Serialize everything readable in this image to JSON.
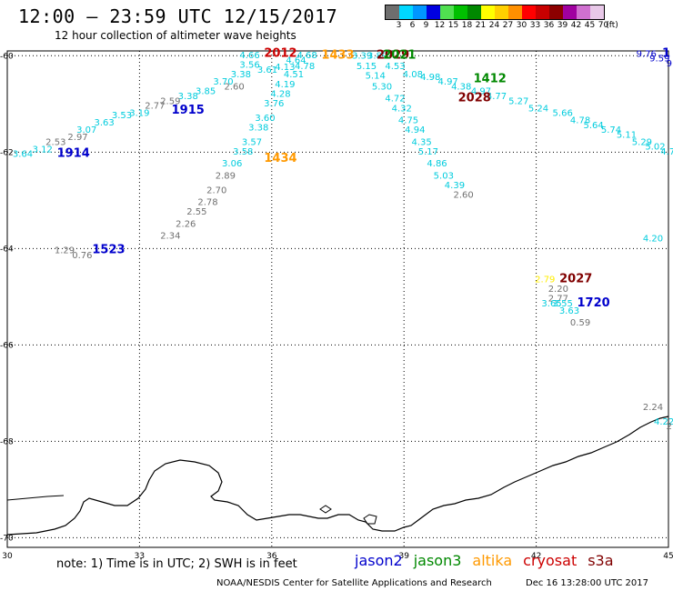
{
  "title": "12:00 – 23:59 UTC 12/15/2017",
  "subtitle": "12 hour collection of altimeter wave heights",
  "legend": {
    "unit": "(ft)",
    "bins": [
      {
        "label": "3",
        "color": "#6e6e6e"
      },
      {
        "label": "6",
        "color": "#00d8ff"
      },
      {
        "label": "9",
        "color": "#0096ff"
      },
      {
        "label": "12",
        "color": "#0000e0"
      },
      {
        "label": "15",
        "color": "#50e050"
      },
      {
        "label": "18",
        "color": "#00c000"
      },
      {
        "label": "21",
        "color": "#008800"
      },
      {
        "label": "24",
        "color": "#ffff00"
      },
      {
        "label": "27",
        "color": "#ffd000"
      },
      {
        "label": "30",
        "color": "#ff9000"
      },
      {
        "label": "33",
        "color": "#ff0000"
      },
      {
        "label": "36",
        "color": "#c80000"
      },
      {
        "label": "39",
        "color": "#8c0000"
      },
      {
        "label": "42",
        "color": "#a000a0"
      },
      {
        "label": "45",
        "color": "#d070d0"
      },
      {
        "label": "70",
        "color": "#e8c8e8"
      }
    ]
  },
  "axes": {
    "lon_ticks": [
      "30",
      "33",
      "36",
      "39",
      "42",
      "45"
    ],
    "lat_ticks": [
      "-60",
      "-62",
      "-64",
      "-66",
      "-68",
      "-70"
    ]
  },
  "colors": {
    "jason2": "#0000cc",
    "jason3": "#008800",
    "altika": "#ff9900",
    "cryosat": "#cc0000",
    "s3a": "#800000",
    "wave_cyan": "#00ccdd",
    "wave_gray": "#707070"
  },
  "pass_times": [
    {
      "text": "2012",
      "color": "#cc0000",
      "lon": 36.2,
      "lat": -60.02
    },
    {
      "text": "1433",
      "color": "#ff9900",
      "lon": 37.5,
      "lat": -60.06
    },
    {
      "text": "2029",
      "color": "#800000",
      "lon": 38.75,
      "lat": -60.06
    },
    {
      "text": "2021",
      "color": "#008800",
      "lon": 38.9,
      "lat": -60.06
    },
    {
      "text": "1412",
      "color": "#008800",
      "lon": 40.95,
      "lat": -60.55
    },
    {
      "text": "2028",
      "color": "#800000",
      "lon": 40.6,
      "lat": -60.95
    },
    {
      "text": "1915",
      "color": "#0000cc",
      "lon": 34.1,
      "lat": -61.2
    },
    {
      "text": "1914",
      "color": "#0000cc",
      "lon": 31.5,
      "lat": -62.1
    },
    {
      "text": "1434",
      "color": "#ff9900",
      "lon": 36.2,
      "lat": -62.2
    },
    {
      "text": "1523",
      "color": "#0000cc",
      "lon": 32.3,
      "lat": -64.1
    },
    {
      "text": "2027",
      "color": "#800000",
      "lon": 42.9,
      "lat": -64.7
    },
    {
      "text": "1720",
      "color": "#0000cc",
      "lon": 43.3,
      "lat": -65.2
    },
    {
      "text": "1",
      "color": "#0000cc",
      "lon": 44.95,
      "lat": -60.02
    }
  ],
  "wave_heights": [
    {
      "text": "4.66",
      "color": "#00ccdd",
      "lon": 35.5,
      "lat": -60.05
    },
    {
      "text": "3.56",
      "color": "#00ccdd",
      "lon": 35.5,
      "lat": -60.25
    },
    {
      "text": "3.61",
      "color": "#00ccdd",
      "lon": 35.9,
      "lat": -60.35
    },
    {
      "text": "3.38",
      "color": "#00ccdd",
      "lon": 35.3,
      "lat": -60.45
    },
    {
      "text": "3.70",
      "color": "#00ccdd",
      "lon": 34.9,
      "lat": -60.6
    },
    {
      "text": "2.60",
      "color": "#707070",
      "lon": 35.15,
      "lat": -60.7
    },
    {
      "text": "3.85",
      "color": "#00ccdd",
      "lon": 34.5,
      "lat": -60.8
    },
    {
      "text": "3.38",
      "color": "#00ccdd",
      "lon": 34.1,
      "lat": -60.9
    },
    {
      "text": "2.59",
      "color": "#707070",
      "lon": 33.7,
      "lat": -61.0
    },
    {
      "text": "2.77",
      "color": "#707070",
      "lon": 33.35,
      "lat": -61.1
    },
    {
      "text": "3.19",
      "color": "#00ccdd",
      "lon": 33.0,
      "lat": -61.25
    },
    {
      "text": "3.53",
      "color": "#00ccdd",
      "lon": 32.6,
      "lat": -61.3
    },
    {
      "text": "3.63",
      "color": "#00ccdd",
      "lon": 32.2,
      "lat": -61.45
    },
    {
      "text": "3.07",
      "color": "#00ccdd",
      "lon": 31.8,
      "lat": -61.6
    },
    {
      "text": "2.97",
      "color": "#707070",
      "lon": 31.6,
      "lat": -61.75
    },
    {
      "text": "2.53",
      "color": "#707070",
      "lon": 31.1,
      "lat": -61.85
    },
    {
      "text": "3.12",
      "color": "#00ccdd",
      "lon": 30.8,
      "lat": -62.0
    },
    {
      "text": "3.64",
      "color": "#00ccdd",
      "lon": 30.35,
      "lat": -62.1
    },
    {
      "text": "4.68",
      "color": "#00ccdd",
      "lon": 36.8,
      "lat": -60.05
    },
    {
      "text": "4.64",
      "color": "#00ccdd",
      "lon": 36.55,
      "lat": -60.15
    },
    {
      "text": "4.13",
      "color": "#00ccdd",
      "lon": 36.3,
      "lat": -60.3
    },
    {
      "text": "4.78",
      "color": "#00ccdd",
      "lon": 36.75,
      "lat": -60.28
    },
    {
      "text": "4.51",
      "color": "#00ccdd",
      "lon": 36.5,
      "lat": -60.45
    },
    {
      "text": "4.19",
      "color": "#00ccdd",
      "lon": 36.3,
      "lat": -60.65
    },
    {
      "text": "4.28",
      "color": "#00ccdd",
      "lon": 36.2,
      "lat": -60.85
    },
    {
      "text": "3.76",
      "color": "#00ccdd",
      "lon": 36.05,
      "lat": -61.05
    },
    {
      "text": "3.60",
      "color": "#00ccdd",
      "lon": 35.85,
      "lat": -61.35
    },
    {
      "text": "3.38",
      "color": "#00ccdd",
      "lon": 35.7,
      "lat": -61.55
    },
    {
      "text": "3.57",
      "color": "#00ccdd",
      "lon": 35.55,
      "lat": -61.85
    },
    {
      "text": "3.58",
      "color": "#00ccdd",
      "lon": 35.35,
      "lat": -62.05
    },
    {
      "text": "3.06",
      "color": "#00ccdd",
      "lon": 35.1,
      "lat": -62.3
    },
    {
      "text": "2.89",
      "color": "#707070",
      "lon": 34.95,
      "lat": -62.55
    },
    {
      "text": "2.70",
      "color": "#707070",
      "lon": 34.75,
      "lat": -62.85
    },
    {
      "text": "2.78",
      "color": "#707070",
      "lon": 34.55,
      "lat": -63.1
    },
    {
      "text": "2.55",
      "color": "#707070",
      "lon": 34.3,
      "lat": -63.3
    },
    {
      "text": "2.26",
      "color": "#707070",
      "lon": 34.05,
      "lat": -63.55
    },
    {
      "text": "2.34",
      "color": "#707070",
      "lon": 33.7,
      "lat": -63.8
    },
    {
      "text": "1.29",
      "color": "#707070",
      "lon": 31.3,
      "lat": -64.1
    },
    {
      "text": "0.76",
      "color": "#707070",
      "lon": 31.7,
      "lat": -64.2
    },
    {
      "text": "3.39",
      "color": "#00ccdd",
      "lon": 38.05,
      "lat": -60.06
    },
    {
      "text": "3.89",
      "color": "#00ccdd",
      "lon": 38.4,
      "lat": -60.06
    },
    {
      "text": "5.15",
      "color": "#00ccdd",
      "lon": 38.15,
      "lat": -60.28
    },
    {
      "text": "4.53",
      "color": "#00ccdd",
      "lon": 38.8,
      "lat": -60.28
    },
    {
      "text": "5.14",
      "color": "#00ccdd",
      "lon": 38.35,
      "lat": -60.48
    },
    {
      "text": "4.08",
      "color": "#00ccdd",
      "lon": 39.2,
      "lat": -60.45
    },
    {
      "text": "4.98",
      "color": "#00ccdd",
      "lon": 39.6,
      "lat": -60.5
    },
    {
      "text": "4.97",
      "color": "#00ccdd",
      "lon": 40.0,
      "lat": -60.6
    },
    {
      "text": "4.38",
      "color": "#00ccdd",
      "lon": 40.3,
      "lat": -60.7
    },
    {
      "text": "5.30",
      "color": "#00ccdd",
      "lon": 38.5,
      "lat": -60.7
    },
    {
      "text": "4.97",
      "color": "#00ccdd",
      "lon": 40.75,
      "lat": -60.8
    },
    {
      "text": "4.77",
      "color": "#00ccdd",
      "lon": 41.1,
      "lat": -60.9
    },
    {
      "text": "5.27",
      "color": "#00ccdd",
      "lon": 41.6,
      "lat": -61.0
    },
    {
      "text": "5.24",
      "color": "#00ccdd",
      "lon": 42.05,
      "lat": -61.15
    },
    {
      "text": "4.72",
      "color": "#00ccdd",
      "lon": 38.8,
      "lat": -60.95
    },
    {
      "text": "4.32",
      "color": "#00ccdd",
      "lon": 38.95,
      "lat": -61.15
    },
    {
      "text": "4.75",
      "color": "#00ccdd",
      "lon": 39.1,
      "lat": -61.4
    },
    {
      "text": "4.94",
      "color": "#00ccdd",
      "lon": 39.25,
      "lat": -61.6
    },
    {
      "text": "4.35",
      "color": "#00ccdd",
      "lon": 39.4,
      "lat": -61.85
    },
    {
      "text": "5.17",
      "color": "#00ccdd",
      "lon": 39.55,
      "lat": -62.05
    },
    {
      "text": "4.86",
      "color": "#00ccdd",
      "lon": 39.75,
      "lat": -62.3
    },
    {
      "text": "5.03",
      "color": "#00ccdd",
      "lon": 39.9,
      "lat": -62.55
    },
    {
      "text": "4.39",
      "color": "#00ccdd",
      "lon": 40.15,
      "lat": -62.75
    },
    {
      "text": "2.60",
      "color": "#707070",
      "lon": 40.35,
      "lat": -62.95
    },
    {
      "text": "5.66",
      "color": "#00ccdd",
      "lon": 42.6,
      "lat": -61.25
    },
    {
      "text": "4.78",
      "color": "#00ccdd",
      "lon": 43.0,
      "lat": -61.4
    },
    {
      "text": "5.64",
      "color": "#00ccdd",
      "lon": 43.3,
      "lat": -61.5
    },
    {
      "text": "5.74",
      "color": "#00ccdd",
      "lon": 43.7,
      "lat": -61.6
    },
    {
      "text": "5.11",
      "color": "#00ccdd",
      "lon": 44.05,
      "lat": -61.7
    },
    {
      "text": "5.29",
      "color": "#00ccdd",
      "lon": 44.4,
      "lat": -61.85
    },
    {
      "text": "5.02",
      "color": "#00ccdd",
      "lon": 44.7,
      "lat": -61.95
    },
    {
      "text": "4.74",
      "color": "#00ccdd",
      "lon": 45.05,
      "lat": -62.05
    },
    {
      "text": "9.76",
      "color": "#0000cc",
      "lon": 44.5,
      "lat": -60.02
    },
    {
      "text": "9.59",
      "color": "#0000cc",
      "lon": 44.8,
      "lat": -60.12
    },
    {
      "text": "9.",
      "color": "#0000cc",
      "lon": 45.05,
      "lat": -60.22
    },
    {
      "text": "4.20",
      "color": "#00ccdd",
      "lon": 44.65,
      "lat": -63.85
    },
    {
      "text": "2.79",
      "color": "#ffee00",
      "lon": 42.2,
      "lat": -64.7
    },
    {
      "text": "2.20",
      "color": "#707070",
      "lon": 42.5,
      "lat": -64.9
    },
    {
      "text": "2.77",
      "color": "#707070",
      "lon": 42.5,
      "lat": -65.1
    },
    {
      "text": "3.65",
      "color": "#00ccdd",
      "lon": 42.35,
      "lat": -65.2
    },
    {
      "text": "3.55",
      "color": "#00ccdd",
      "lon": 42.6,
      "lat": -65.2
    },
    {
      "text": "3.63",
      "color": "#00ccdd",
      "lon": 42.75,
      "lat": -65.35
    },
    {
      "text": "0.59",
      "color": "#707070",
      "lon": 43.0,
      "lat": -65.6
    },
    {
      "text": "2.24",
      "color": "#707070",
      "lon": 44.65,
      "lat": -67.35
    },
    {
      "text": "4.22",
      "color": "#00ccdd",
      "lon": 44.9,
      "lat": -67.65
    },
    {
      "text": "2.",
      "color": "#707070",
      "lon": 45.05,
      "lat": -67.75
    }
  ],
  "footer": {
    "note": "note:  1) Time is in UTC;  2) SWH is in feet",
    "satellites": [
      {
        "name": "jason2",
        "color": "#0000cc"
      },
      {
        "name": "jason3",
        "color": "#008800"
      },
      {
        "name": "altika",
        "color": "#ff9900"
      },
      {
        "name": "cryosat",
        "color": "#cc0000"
      },
      {
        "name": "s3a",
        "color": "#800000"
      }
    ],
    "credit": "NOAA/NESDIS Center for Satellite Applications and Research",
    "date": "Dec 16 13:28:00 UTC 2017"
  }
}
